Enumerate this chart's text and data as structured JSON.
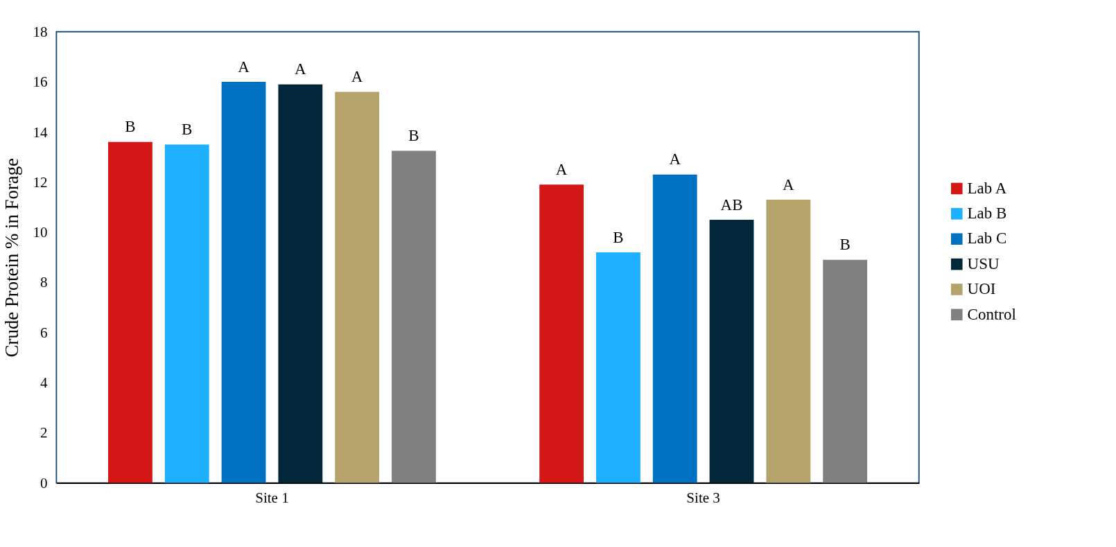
{
  "chart_data": {
    "type": "bar",
    "ylabel": "Crude Protein % in Forage",
    "categories": [
      "Site 1",
      "Site 3"
    ],
    "series": [
      {
        "name": "Lab A",
        "color": "#d21716",
        "values": [
          13.6,
          11.9
        ],
        "value_labels": [
          "B",
          "A"
        ]
      },
      {
        "name": "Lab B",
        "color": "#1fb0ff",
        "values": [
          13.5,
          9.2
        ],
        "value_labels": [
          "B",
          "B"
        ]
      },
      {
        "name": "Lab C",
        "color": "#0070c0",
        "values": [
          16.0,
          12.3
        ],
        "value_labels": [
          "A",
          "A"
        ]
      },
      {
        "name": "USU",
        "color": "#02263a",
        "values": [
          15.9,
          10.5
        ],
        "value_labels": [
          "A",
          "AB"
        ]
      },
      {
        "name": "UOI",
        "color": "#b5a36b",
        "values": [
          15.6,
          11.3
        ],
        "value_labels": [
          "A",
          "A"
        ]
      },
      {
        "name": "Control",
        "color": "#808080",
        "values": [
          13.25,
          8.9
        ],
        "value_labels": [
          "B",
          "B"
        ]
      }
    ],
    "ylim": [
      0,
      18
    ],
    "yticks": [
      0,
      2,
      4,
      6,
      8,
      10,
      12,
      14,
      16,
      18
    ],
    "grid": false,
    "legend": "right"
  }
}
